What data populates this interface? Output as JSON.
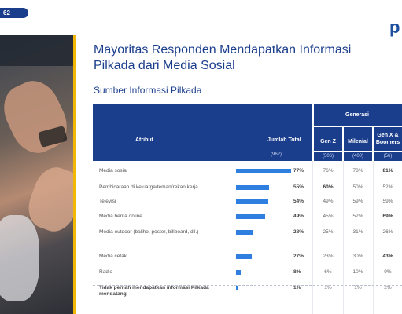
{
  "page_tag": "62",
  "logo": "p",
  "title": "Mayoritas Responden Mendapatkan Informasi Pilkada dari Media Sosial",
  "subtitle": "Sumber Informasi Pilkada",
  "table": {
    "header_attr": "Atribut",
    "header_total": "Jumlah Total",
    "total_n": "(962)",
    "header_generasi": "Generasi",
    "generations": [
      {
        "label": "Gen Z",
        "n": "(506)"
      },
      {
        "label": "Milenial",
        "n": "(400)"
      },
      {
        "label": "Gen X & Boomers",
        "n": "(56)"
      }
    ],
    "rows": [
      {
        "attr": "Media sosial",
        "total": "77%",
        "total_value": 77,
        "gz": "76%",
        "mil": "78%",
        "gx": "81%",
        "hl": "gx"
      },
      {
        "attr": "Pembicaraan di keluarga/teman/rekan kerja",
        "total": "55%",
        "total_value": 55,
        "gz": "60%",
        "mil": "50%",
        "gx": "52%",
        "hl": "gz"
      },
      {
        "attr": "Televisi",
        "total": "54%",
        "total_value": 54,
        "gz": "49%",
        "mil": "59%",
        "gx": "59%",
        "hl": ""
      },
      {
        "attr": "Media berita online",
        "total": "49%",
        "total_value": 49,
        "gz": "45%",
        "mil": "52%",
        "gx": "69%",
        "hl": "gx"
      },
      {
        "attr": "Media outdoor (baliho, poster, billboard, dll.)",
        "total": "28%",
        "total_value": 28,
        "gz": "25%",
        "mil": "31%",
        "gx": "26%",
        "hl": ""
      },
      {
        "attr": "Media cetak",
        "total": "27%",
        "total_value": 27,
        "gz": "23%",
        "mil": "30%",
        "gx": "43%",
        "hl": "gx"
      },
      {
        "attr": "Radio",
        "total": "8%",
        "total_value": 8,
        "gz": "6%",
        "mil": "10%",
        "gx": "9%",
        "hl": ""
      },
      {
        "attr": "Tidak pernah mendapatkan informasi Pilkada mendatang",
        "total": "1%",
        "total_value": 1,
        "gz": "1%",
        "mil": "1%",
        "gx": "2%",
        "hl": ""
      }
    ]
  },
  "colors": {
    "header": "#1b3e8c",
    "bar": "#2f7fe0",
    "accent": "#f2b705"
  }
}
